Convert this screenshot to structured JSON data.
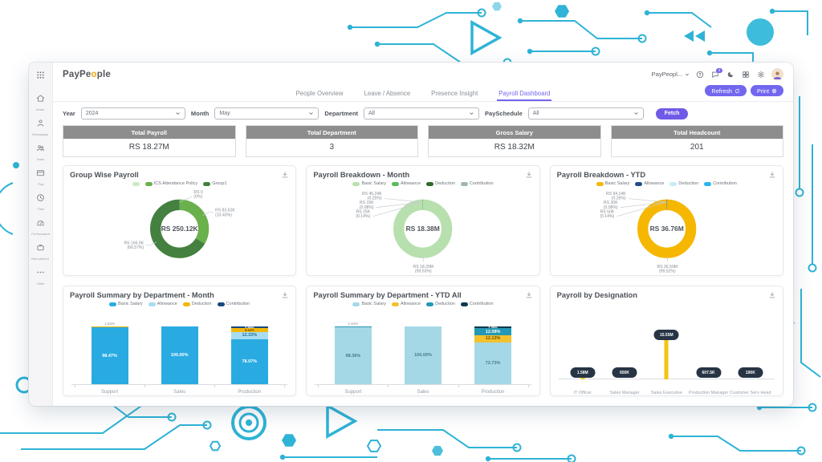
{
  "header": {
    "logo_segments": [
      {
        "text": "PayPe",
        "color": "#54555a"
      },
      {
        "text": "o",
        "color": "#f2a50c"
      },
      {
        "text": "ple",
        "color": "#54555a"
      }
    ],
    "account_label": "PayPeopl...",
    "icons": [
      {
        "name": "help-icon"
      },
      {
        "name": "messages-icon",
        "badge": "3"
      },
      {
        "name": "theme-icon"
      },
      {
        "name": "apps-icon"
      },
      {
        "name": "settings-icon"
      }
    ],
    "refresh_label": "Refresh",
    "print_label": "Print"
  },
  "sidebar": {
    "items": [
      {
        "icon": "apps-grid-icon",
        "label": ""
      },
      {
        "icon": "home-icon",
        "label": "Home"
      },
      {
        "icon": "workspace-icon",
        "label": "Workspace"
      },
      {
        "icon": "team-icon",
        "label": "Team"
      },
      {
        "icon": "pay-icon",
        "label": "Pay"
      },
      {
        "icon": "time-icon",
        "label": "Time"
      },
      {
        "icon": "performance-icon",
        "label": "Performance"
      },
      {
        "icon": "recruitment-icon",
        "label": "Recruitment"
      },
      {
        "icon": "more-icon",
        "label": "Other"
      }
    ]
  },
  "tabs": [
    {
      "label": "People Overview",
      "active": false
    },
    {
      "label": "Leave / Absence",
      "active": false
    },
    {
      "label": "Presence Insight",
      "active": false
    },
    {
      "label": "Payroll Dashboard",
      "active": true
    }
  ],
  "filters": {
    "fields": [
      {
        "label": "Year",
        "value": "2024",
        "width": "w1"
      },
      {
        "label": "Month",
        "value": "May",
        "width": "w1"
      },
      {
        "label": "Department",
        "value": "All",
        "width": "w2"
      },
      {
        "label": "PaySchedule",
        "value": "All",
        "width": "w2"
      }
    ],
    "fetch_label": "Fetch"
  },
  "summary_cards": [
    {
      "title": "Total Payroll",
      "value": "RS 18.27M"
    },
    {
      "title": "Total Department",
      "value": "3"
    },
    {
      "title": "Gross Salary",
      "value": "RS 18.32M"
    },
    {
      "title": "Total Headcount",
      "value": "201"
    }
  ],
  "chart_data": [
    {
      "type": "pie",
      "subtype": "donut",
      "title": "Group Wise Payroll",
      "center_label": "RS 250.12K",
      "legend_position": "top",
      "tiny_label_side": "right",
      "legend": [
        {
          "name": "",
          "color": "#cdeac0"
        },
        {
          "name": "ICS Attendance Policy",
          "color": "#6ab04c"
        },
        {
          "name": "Group1",
          "color": "#44803f"
        }
      ],
      "slices": [
        {
          "name": "",
          "value": 0.0,
          "color": "#cdeac0",
          "label": "RS 0",
          "pct_label": "(0%)"
        },
        {
          "name": "ICS Attendance Policy",
          "value": 33.43,
          "color": "#6ab04c",
          "label": "RS 83.62K",
          "pct_label": "(33.43%)"
        },
        {
          "name": "Group1",
          "value": 66.57,
          "color": "#44803f",
          "label": "RS 166.5K",
          "pct_label": "(66.57%)"
        }
      ]
    },
    {
      "type": "pie",
      "subtype": "donut",
      "title": "Payroll Breakdown - Month",
      "center_label": "RS 18.38M",
      "legend_position": "top",
      "tiny_label_side": "left",
      "legend": [
        {
          "name": "Basic Salary",
          "color": "#b8e0ae"
        },
        {
          "name": "Allowance",
          "color": "#5cb85c"
        },
        {
          "name": "Deduction",
          "color": "#2e6b2e"
        },
        {
          "name": "Contribution",
          "color": "#9fb8a8"
        }
      ],
      "slices": [
        {
          "name": "Basic Salary",
          "value": 99.53,
          "color": "#b8e0ae",
          "label": "RS 18.29M",
          "pct_label": "(99.53%)"
        },
        {
          "name": "Allowance",
          "value": 0.25,
          "color": "#5cb85c",
          "label": "RS 45.24K",
          "pct_label": "(0.25%)"
        },
        {
          "name": "Deduction",
          "value": 0.08,
          "color": "#2e6b2e",
          "label": "RS 15K",
          "pct_label": "(0.08%)"
        },
        {
          "name": "Contribution",
          "value": 0.14,
          "color": "#9fb8a8",
          "label": "RS 25K",
          "pct_label": "(0.14%)"
        }
      ]
    },
    {
      "type": "pie",
      "subtype": "donut",
      "title": "Payroll Breakdown - YTD",
      "center_label": "RS 36.76M",
      "legend_position": "top",
      "tiny_label_side": "left",
      "legend": [
        {
          "name": "Basic Salary",
          "color": "#f5b700"
        },
        {
          "name": "Allowance",
          "color": "#1f4e8c"
        },
        {
          "name": "Deduction",
          "color": "#c9ecf7"
        },
        {
          "name": "Contribution",
          "color": "#29b6e8"
        }
      ],
      "slices": [
        {
          "name": "Basic Salary",
          "value": 99.52,
          "color": "#f5b700",
          "label": "RS 36.59M",
          "pct_label": "(99.52%)"
        },
        {
          "name": "Allowance",
          "value": 0.26,
          "color": "#1f4e8c",
          "label": "RS 94.14K",
          "pct_label": "(0.26%)"
        },
        {
          "name": "Deduction",
          "value": 0.08,
          "color": "#c9ecf7",
          "label": "RS 30K",
          "pct_label": "(0.08%)"
        },
        {
          "name": "Contribution",
          "value": 0.14,
          "color": "#29b6e8",
          "label": "RS 50K",
          "pct_label": "(0.14%)"
        }
      ]
    },
    {
      "type": "bar",
      "subtype": "stacked-percent",
      "title": "Payroll Summary by Department - Month",
      "categories": [
        "Support",
        "Sales",
        "Production"
      ],
      "ylim": [
        0,
        100
      ],
      "unit": "%",
      "bar_top_labels": [
        "1.53%",
        "",
        ""
      ],
      "series": [
        {
          "name": "Basic Salary",
          "color": "#29abe2",
          "label_color": "#ffffff",
          "values": [
            98.47,
            100.0,
            78.07
          ]
        },
        {
          "name": "Allowance",
          "color": "#a8dcf0",
          "label_color": "#1d6f94",
          "values": [
            0,
            0,
            12.33
          ]
        },
        {
          "name": "Deduction",
          "color": "#f2b70a",
          "label_color": "#6e5300",
          "values": [
            1.53,
            0,
            6.64
          ]
        },
        {
          "name": "Contribution",
          "color": "#17497e",
          "label_color": "#ffffff",
          "values": [
            0,
            0,
            2.96
          ]
        }
      ]
    },
    {
      "type": "bar",
      "subtype": "stacked-percent",
      "title": "Payroll Summary by Department - YTD All",
      "categories": [
        "Support",
        "Sales",
        "Production"
      ],
      "ylim": [
        0,
        100
      ],
      "unit": "%",
      "bar_top_labels": [
        "1.64%",
        "",
        ""
      ],
      "series": [
        {
          "name": "Basic Salary",
          "color": "#a5d8e6",
          "label_color": "#48798b",
          "values": [
            98.36,
            100.0,
            72.73
          ]
        },
        {
          "name": "Allowance",
          "color": "#f2c12e",
          "label_color": "#6e5300",
          "values": [
            0,
            0,
            12.13
          ]
        },
        {
          "name": "Deduction",
          "color": "#2498b5",
          "label_color": "#ffffff",
          "values": [
            1.64,
            0,
            12.08
          ]
        },
        {
          "name": "Contribution",
          "color": "#0e3a4e",
          "label_color": "#ffffff",
          "values": [
            0,
            0,
            3.06
          ]
        }
      ]
    },
    {
      "type": "lollipop",
      "title": "Payroll by Designation",
      "categories": [
        "IT Officer",
        "Sales Manager",
        "Sales Executive",
        "Production Manager",
        "Customer Serv Head"
      ],
      "values": [
        1.58,
        0.65,
        15.55,
        0.6075,
        0.19
      ],
      "value_labels": [
        "1.58M",
        "650K",
        "15.55M",
        "607.5K",
        "190K"
      ],
      "max": 15.55,
      "stem_color": "#f5c313",
      "marker_color": "#273444"
    }
  ],
  "colors": {
    "accent_purple": "#7367ef",
    "summary_header_gray": "#8d8d8d",
    "decor_teal": "#2fb3d6"
  }
}
